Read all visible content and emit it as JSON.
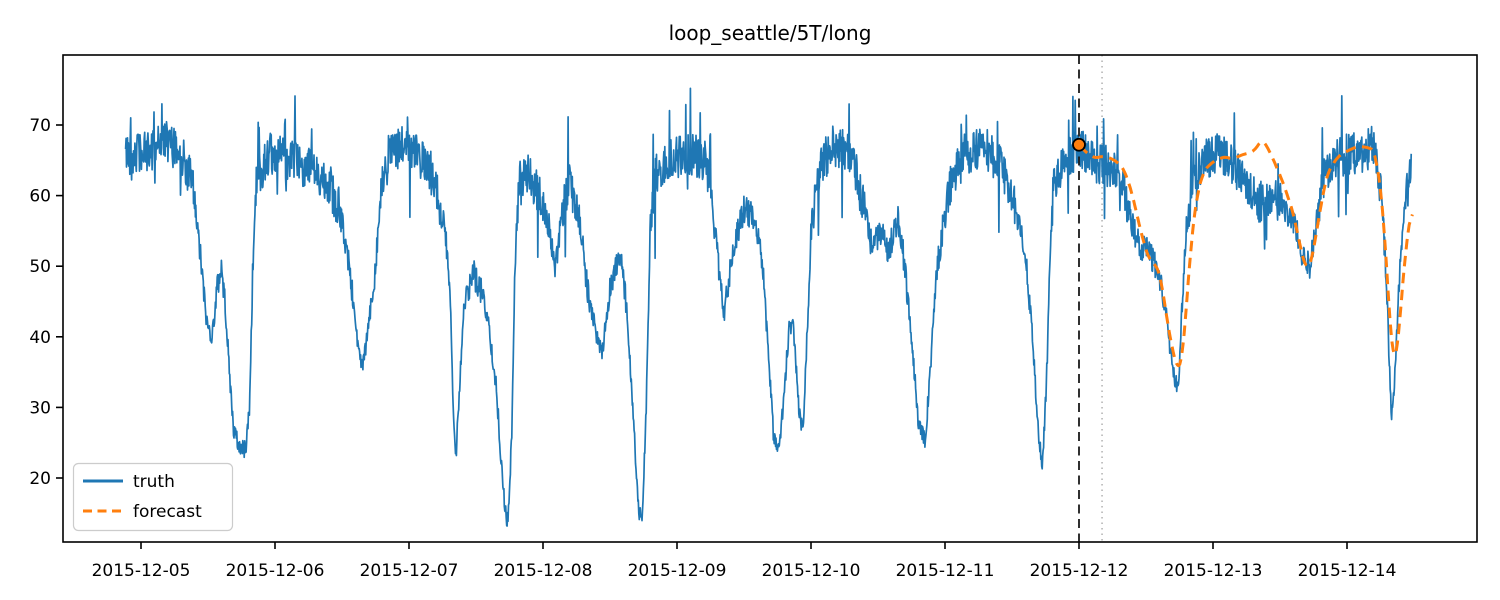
{
  "title": "loop_seattle/5T/long",
  "legend": {
    "entries": [
      {
        "label": "truth",
        "style": "solid"
      },
      {
        "label": "forecast",
        "style": "dashed"
      }
    ],
    "position": "lower-left"
  },
  "colors": {
    "truth": "#1f77b4",
    "forecast": "#ff7f0e",
    "marker_fill": "#ff7f0e",
    "marker_edge": "#000000",
    "split_line": "#1a1a1a",
    "aux_line": "#b0b0b0",
    "spine": "#000000",
    "legend_border": "#cccccc",
    "text": "#000000"
  },
  "chart_data": {
    "type": "line",
    "title": "loop_seattle/5T/long",
    "xlabel": "",
    "ylabel": "",
    "x_tick_labels": [
      "2015-12-05",
      "2015-12-06",
      "2015-12-07",
      "2015-12-08",
      "2015-12-09",
      "2015-12-10",
      "2015-12-11",
      "2015-12-12",
      "2015-12-13",
      "2015-12-14"
    ],
    "y_ticks": [
      20,
      30,
      40,
      50,
      60,
      70
    ],
    "ylim": [
      10.9,
      79.9
    ],
    "xlim_days": [
      -0.582,
      9.97
    ],
    "grid": false,
    "legend_position": "lower left",
    "sample_minutes": 5,
    "series": [
      {
        "name": "truth",
        "style": "solid",
        "color": "#1f77b4",
        "keypoints": [
          [
            -0.115,
            66
          ],
          [
            0.05,
            66
          ],
          [
            0.16,
            68
          ],
          [
            0.3,
            66
          ],
          [
            0.38,
            62
          ],
          [
            0.44,
            52
          ],
          [
            0.49,
            42
          ],
          [
            0.53,
            40
          ],
          [
            0.57,
            47
          ],
          [
            0.6,
            50
          ],
          [
            0.63,
            44
          ],
          [
            0.66,
            35
          ],
          [
            0.69,
            27
          ],
          [
            0.73,
            24.5
          ],
          [
            0.78,
            24
          ],
          [
            0.81,
            30
          ],
          [
            0.835,
            50
          ],
          [
            0.86,
            62
          ],
          [
            0.95,
            66
          ],
          [
            1.1,
            65
          ],
          [
            1.25,
            64
          ],
          [
            1.4,
            62
          ],
          [
            1.48,
            58
          ],
          [
            1.54,
            52
          ],
          [
            1.59,
            44
          ],
          [
            1.63,
            37
          ],
          [
            1.66,
            36
          ],
          [
            1.7,
            42
          ],
          [
            1.74,
            48
          ],
          [
            1.79,
            60
          ],
          [
            1.85,
            66
          ],
          [
            1.97,
            67
          ],
          [
            2.1,
            65
          ],
          [
            2.2,
            61
          ],
          [
            2.27,
            55
          ],
          [
            2.31,
            45
          ],
          [
            2.33,
            30
          ],
          [
            2.35,
            23
          ],
          [
            2.38,
            34
          ],
          [
            2.41,
            44
          ],
          [
            2.48,
            49
          ],
          [
            2.55,
            46
          ],
          [
            2.6,
            41
          ],
          [
            2.65,
            33
          ],
          [
            2.69,
            22
          ],
          [
            2.72,
            15
          ],
          [
            2.74,
            13.6
          ],
          [
            2.77,
            28
          ],
          [
            2.79,
            50
          ],
          [
            2.82,
            61
          ],
          [
            2.88,
            63
          ],
          [
            2.95,
            61
          ],
          [
            3.04,
            56
          ],
          [
            3.09,
            50
          ],
          [
            3.14,
            57
          ],
          [
            3.2,
            62
          ],
          [
            3.27,
            57
          ],
          [
            3.33,
            47
          ],
          [
            3.39,
            41
          ],
          [
            3.44,
            37.5
          ],
          [
            3.5,
            47
          ],
          [
            3.57,
            52
          ],
          [
            3.62,
            45
          ],
          [
            3.67,
            30
          ],
          [
            3.71,
            16
          ],
          [
            3.74,
            13.5
          ],
          [
            3.77,
            30
          ],
          [
            3.8,
            55
          ],
          [
            3.84,
            63
          ],
          [
            3.95,
            65
          ],
          [
            4.1,
            66
          ],
          [
            4.22,
            65
          ],
          [
            4.3,
            52
          ],
          [
            4.35,
            43
          ],
          [
            4.42,
            53
          ],
          [
            4.5,
            58
          ],
          [
            4.58,
            57
          ],
          [
            4.64,
            50
          ],
          [
            4.68,
            38
          ],
          [
            4.72,
            26
          ],
          [
            4.76,
            23.5
          ],
          [
            4.8,
            32
          ],
          [
            4.84,
            42
          ],
          [
            4.87,
            41
          ],
          [
            4.91,
            30
          ],
          [
            4.94,
            26.5
          ],
          [
            4.97,
            40
          ],
          [
            5.0,
            55
          ],
          [
            5.05,
            63
          ],
          [
            5.15,
            67
          ],
          [
            5.3,
            66
          ],
          [
            5.4,
            58
          ],
          [
            5.45,
            53
          ],
          [
            5.52,
            55
          ],
          [
            5.58,
            52
          ],
          [
            5.65,
            57
          ],
          [
            5.7,
            50
          ],
          [
            5.75,
            40
          ],
          [
            5.8,
            28
          ],
          [
            5.85,
            25
          ],
          [
            5.89,
            35
          ],
          [
            5.93,
            48
          ],
          [
            5.98,
            55
          ],
          [
            6.05,
            62
          ],
          [
            6.15,
            66
          ],
          [
            6.3,
            67
          ],
          [
            6.42,
            64
          ],
          [
            6.5,
            60
          ],
          [
            6.56,
            55
          ],
          [
            6.61,
            50
          ],
          [
            6.66,
            38
          ],
          [
            6.7,
            25
          ],
          [
            6.73,
            22
          ],
          [
            6.76,
            35
          ],
          [
            6.785,
            52
          ],
          [
            6.81,
            62
          ],
          [
            6.9,
            65
          ],
          [
            7.0,
            67
          ],
          [
            7.08,
            65
          ],
          [
            7.16,
            64.5
          ],
          [
            7.24,
            64
          ],
          [
            7.32,
            62
          ],
          [
            7.38,
            57
          ],
          [
            7.45,
            53
          ],
          [
            7.52,
            52
          ],
          [
            7.58,
            50
          ],
          [
            7.64,
            45
          ],
          [
            7.68,
            38
          ],
          [
            7.72,
            33.5
          ],
          [
            7.745,
            33
          ],
          [
            7.77,
            45
          ],
          [
            7.8,
            55
          ],
          [
            7.85,
            62
          ],
          [
            7.95,
            65
          ],
          [
            8.05,
            66
          ],
          [
            8.15,
            64
          ],
          [
            8.25,
            61
          ],
          [
            8.35,
            59
          ],
          [
            8.45,
            60
          ],
          [
            8.55,
            58
          ],
          [
            8.62,
            55
          ],
          [
            8.68,
            51
          ],
          [
            8.72,
            50
          ],
          [
            8.76,
            55
          ],
          [
            8.82,
            62
          ],
          [
            8.9,
            65
          ],
          [
            9.0,
            66
          ],
          [
            9.1,
            66
          ],
          [
            9.2,
            67
          ],
          [
            9.26,
            60
          ],
          [
            9.3,
            45
          ],
          [
            9.33,
            28.5
          ],
          [
            9.36,
            35
          ],
          [
            9.4,
            52
          ],
          [
            9.43,
            58
          ],
          [
            9.46,
            62
          ],
          [
            9.48,
            65
          ]
        ],
        "noise": {
          "high_amp": 3.0,
          "mid_amp": 2.0,
          "low_amp": 1.3,
          "spike_prob": 0.05,
          "max_value": 76.3,
          "min_value": 13.2
        }
      },
      {
        "name": "forecast",
        "style": "dashed",
        "color": "#ff7f0e",
        "keypoints": [
          [
            7.0,
            67.2
          ],
          [
            7.06,
            66
          ],
          [
            7.12,
            65.3
          ],
          [
            7.18,
            65.6
          ],
          [
            7.25,
            65.2
          ],
          [
            7.32,
            64.2
          ],
          [
            7.36,
            62.5
          ],
          [
            7.4,
            60
          ],
          [
            7.46,
            55
          ],
          [
            7.52,
            51
          ],
          [
            7.57,
            50.3
          ],
          [
            7.61,
            48.5
          ],
          [
            7.66,
            42
          ],
          [
            7.71,
            37
          ],
          [
            7.74,
            35.2
          ],
          [
            7.77,
            36.5
          ],
          [
            7.8,
            44
          ],
          [
            7.84,
            54
          ],
          [
            7.88,
            60
          ],
          [
            7.93,
            63.5
          ],
          [
            8.0,
            64.8
          ],
          [
            8.08,
            65.5
          ],
          [
            8.15,
            65.2
          ],
          [
            8.22,
            65.8
          ],
          [
            8.3,
            66.2
          ],
          [
            8.37,
            68
          ],
          [
            8.43,
            66
          ],
          [
            8.52,
            62
          ],
          [
            8.6,
            57.5
          ],
          [
            8.66,
            52
          ],
          [
            8.7,
            49.3
          ],
          [
            8.74,
            51
          ],
          [
            8.79,
            57
          ],
          [
            8.85,
            63
          ],
          [
            8.93,
            65.5
          ],
          [
            9.0,
            66.3
          ],
          [
            9.08,
            67
          ],
          [
            9.16,
            66.8
          ],
          [
            9.21,
            66.3
          ],
          [
            9.27,
            58
          ],
          [
            9.31,
            45
          ],
          [
            9.345,
            36
          ],
          [
            9.37,
            37
          ],
          [
            9.41,
            46
          ],
          [
            9.44,
            53
          ],
          [
            9.49,
            59
          ]
        ],
        "noise": null
      }
    ],
    "markers": {
      "forecast_start": {
        "t": 7.0,
        "value": 67.2,
        "date": "2015-12-12"
      },
      "aux_vline_t": 7.172
    }
  }
}
